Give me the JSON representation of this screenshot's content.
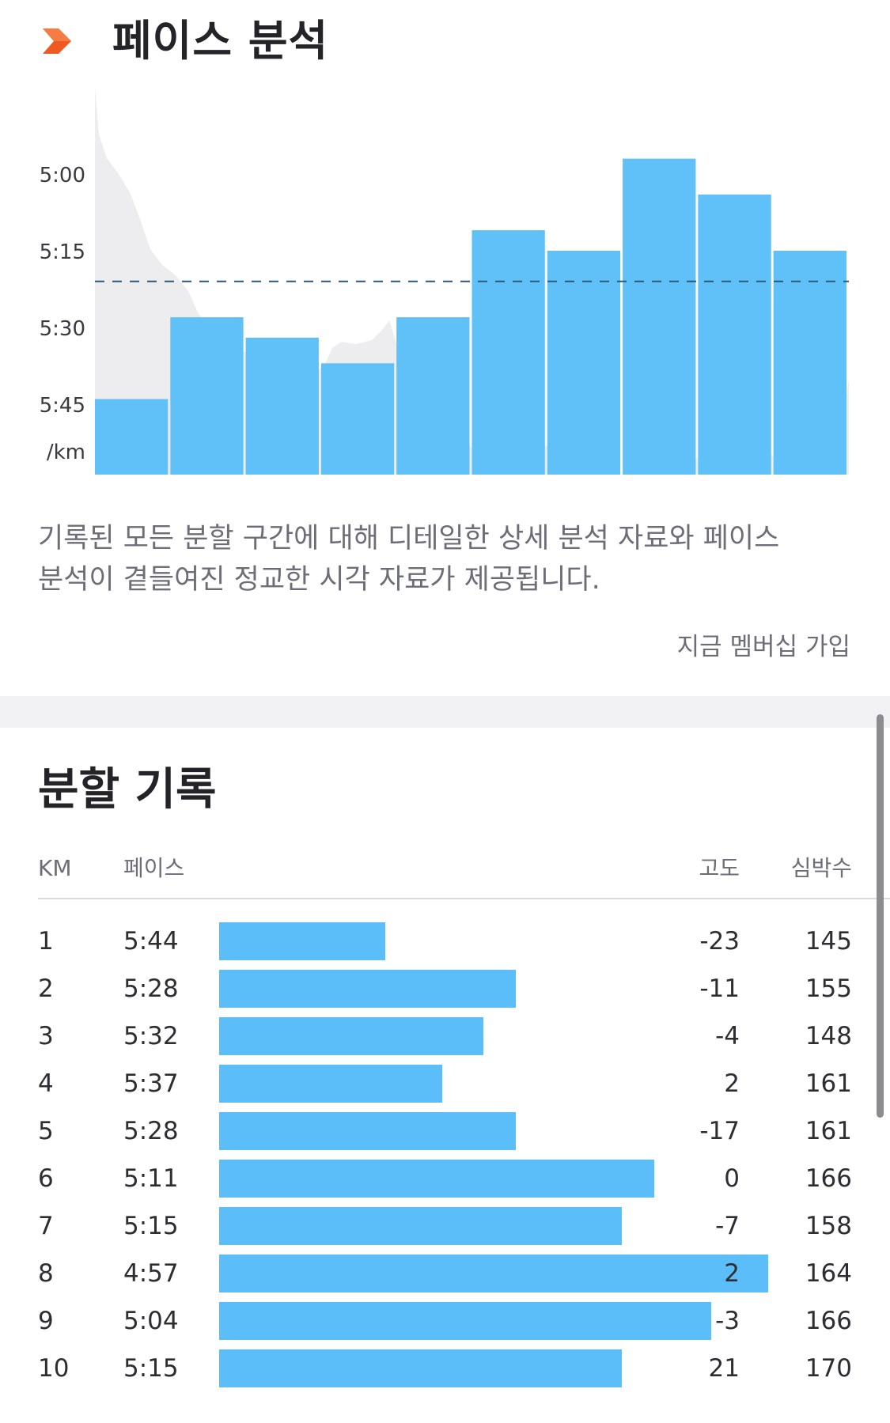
{
  "header": {
    "icon": "chevron-right-icon",
    "title": "페이스 분석",
    "accent_color": "#f05a22"
  },
  "chart_data": {
    "type": "bar",
    "categories": [
      "1",
      "2",
      "3",
      "4",
      "5",
      "6",
      "7",
      "8",
      "9",
      "10"
    ],
    "values_seconds_per_km": [
      344,
      328,
      332,
      337,
      328,
      311,
      315,
      297,
      304,
      315
    ],
    "average_pace_seconds_per_km": 321,
    "ytick_labels": [
      "5:00",
      "5:15",
      "5:30",
      "5:45"
    ],
    "ytick_values": [
      300,
      315,
      330,
      345
    ],
    "yunit": "/km",
    "bar_color": "#5bbef8",
    "elevation_area_color": "#ededf0",
    "grid": false
  },
  "description": {
    "line1": "기록된 모든 분할 구간에 대해 디테일한 상세 분석 자료와 페이스",
    "line2": "분석이 곁들여진 정교한 시각 자료가 제공됩니다."
  },
  "join_link": "지금 멤버십 가입",
  "splits": {
    "title": "분할 기록",
    "columns": {
      "km": "KM",
      "pace": "페이스",
      "elevation": "고도",
      "heart_rate": "심박수"
    },
    "rows": [
      {
        "km": "1",
        "pace": "5:44",
        "pace_seconds": 344,
        "elevation": "-23",
        "hr": "145"
      },
      {
        "km": "2",
        "pace": "5:28",
        "pace_seconds": 328,
        "elevation": "-11",
        "hr": "155"
      },
      {
        "km": "3",
        "pace": "5:32",
        "pace_seconds": 332,
        "elevation": "-4",
        "hr": "148"
      },
      {
        "km": "4",
        "pace": "5:37",
        "pace_seconds": 337,
        "elevation": "2",
        "hr": "161"
      },
      {
        "km": "5",
        "pace": "5:28",
        "pace_seconds": 328,
        "elevation": "-17",
        "hr": "161"
      },
      {
        "km": "6",
        "pace": "5:11",
        "pace_seconds": 311,
        "elevation": "0",
        "hr": "166"
      },
      {
        "km": "7",
        "pace": "5:15",
        "pace_seconds": 315,
        "elevation": "-7",
        "hr": "158"
      },
      {
        "km": "8",
        "pace": "4:57",
        "pace_seconds": 297,
        "elevation": "2",
        "hr": "164"
      },
      {
        "km": "9",
        "pace": "5:04",
        "pace_seconds": 304,
        "elevation": "-3",
        "hr": "166"
      },
      {
        "km": "10",
        "pace": "5:15",
        "pace_seconds": 315,
        "elevation": "21",
        "hr": "170"
      }
    ]
  }
}
